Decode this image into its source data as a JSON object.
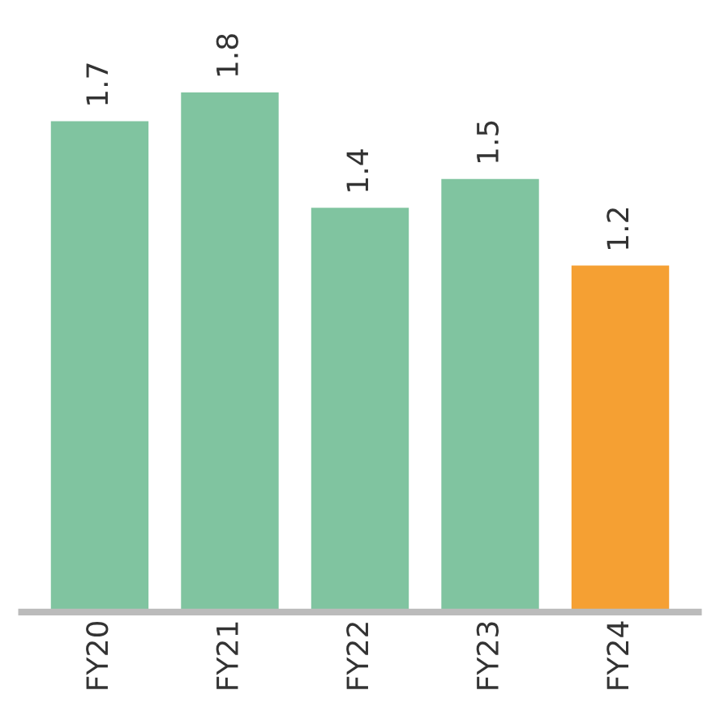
{
  "chart_data": {
    "type": "bar",
    "categories": [
      "FY20",
      "FY21",
      "FY22",
      "FY23",
      "FY24"
    ],
    "values": [
      1.7,
      1.8,
      1.4,
      1.5,
      1.2
    ],
    "colors": [
      "#80c4a0",
      "#80c4a0",
      "#80c4a0",
      "#80c4a0",
      "#f5a033"
    ],
    "data_labels": true,
    "tick_labels": "x"
  }
}
